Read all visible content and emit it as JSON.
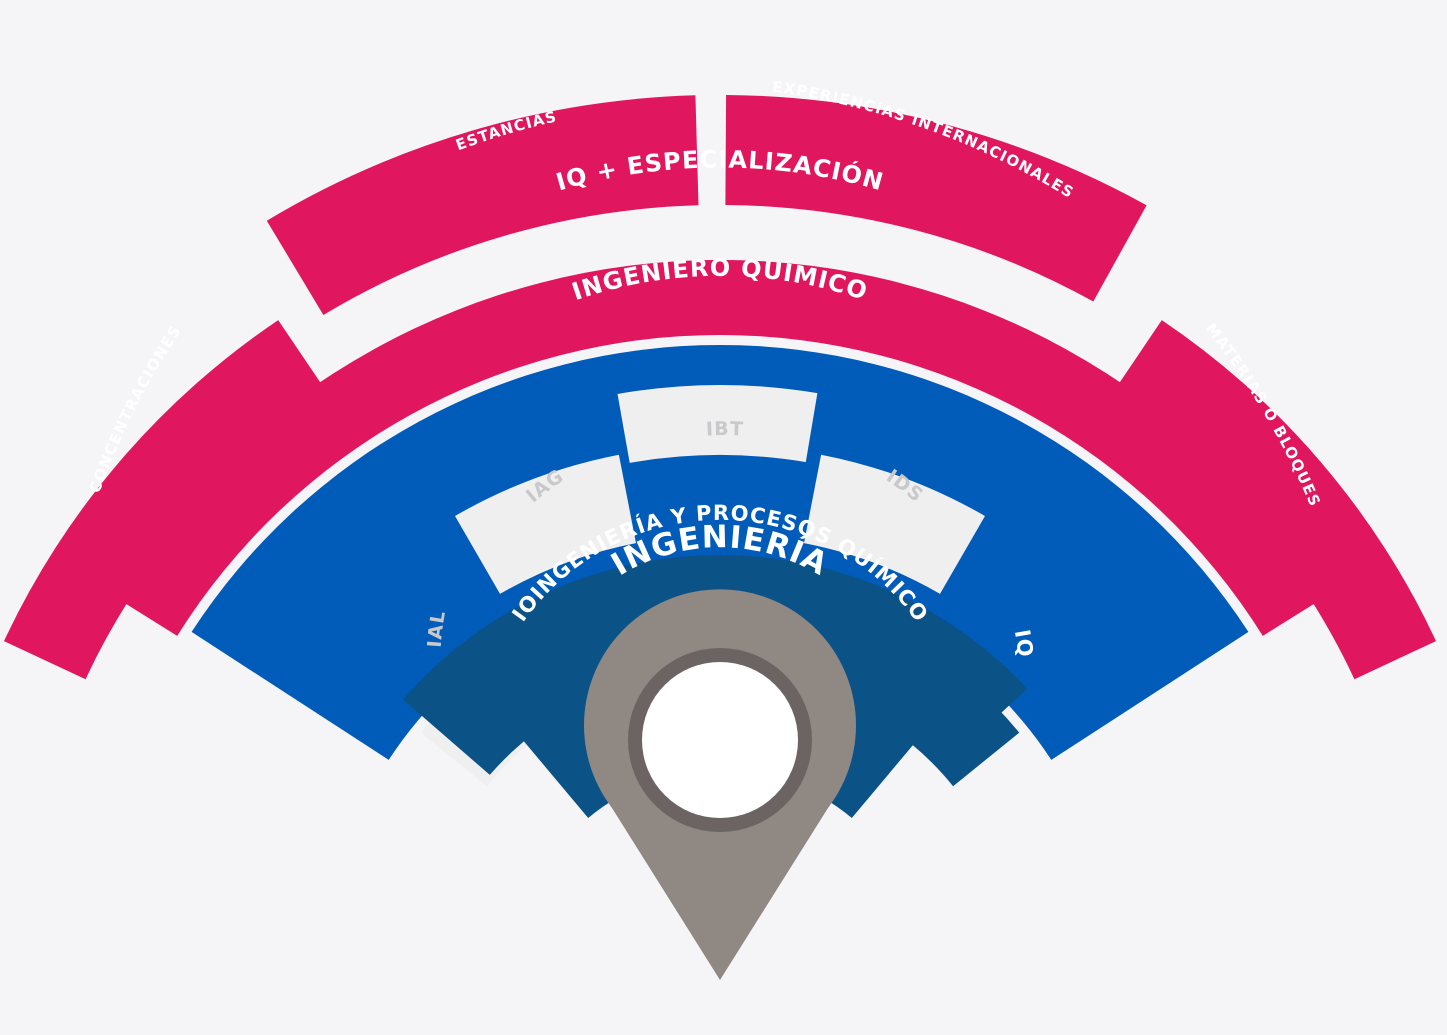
{
  "outer_ring": {
    "concentraciones": "CONCENTRACIONES",
    "estancias": "ESTANCIAS",
    "experiencias": "EXPERIENCIAS INTERNACIONALES",
    "materias": "MATERIAS O BLOQUES"
  },
  "specialization_ring": {
    "label": "IQ + ESPECIALIZACIÓN"
  },
  "engineer_ring": {
    "label": "INGENIERO QUÍMICO"
  },
  "majors": {
    "ial": "IAL",
    "iag": "IAG",
    "ibt": "IBT",
    "ids": "IDS",
    "iq": "IQ"
  },
  "bioengineering_ring": {
    "label": "BIOINGENIERÍA Y PROCESOS QUÍMICOS"
  },
  "engineering_ring": {
    "label": "INGENIERÍA"
  },
  "colors": {
    "background": "#f5f5f7",
    "magenta": "#e0165e",
    "blue": "#005bb9",
    "navy": "#0b5387",
    "light_grey": "#efeff0",
    "pin": "#8f8883",
    "pin_ring": "#6c6462"
  },
  "icons": {
    "pin": "location-pin-icon"
  }
}
